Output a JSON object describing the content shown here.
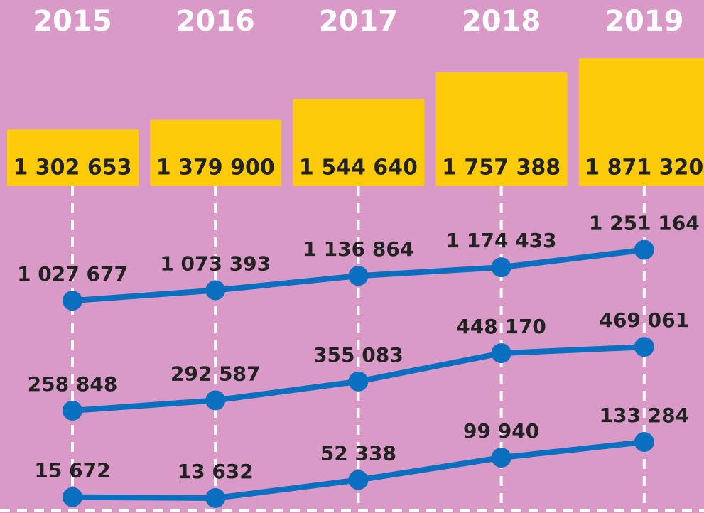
{
  "chart_data": [
    {
      "type": "bar",
      "categories": [
        "2015",
        "2016",
        "2017",
        "2018",
        "2019"
      ],
      "values": [
        1302653,
        1379900,
        1544640,
        1757388,
        1871320
      ],
      "value_labels": [
        "1 302 653",
        "1 379 900",
        "1 544 640",
        "1 757 388",
        "1 871 320"
      ],
      "color": "#fecb0a",
      "ylim": [
        850000,
        1900000
      ]
    },
    {
      "type": "line",
      "color": "#0a6fbf",
      "values": [
        1027677,
        1073393,
        1136864,
        1174433,
        1251164
      ],
      "value_labels": [
        "1 027 677",
        "1 073 393",
        "1 136 864",
        "1 174 433",
        "1 251 164"
      ],
      "ylim": [
        900000,
        1300000
      ]
    },
    {
      "type": "line",
      "color": "#0a6fbf",
      "values": [
        258848,
        292587,
        355083,
        448170,
        469061
      ],
      "value_labels": [
        "258 848",
        "292 587",
        "355 083",
        "448 170",
        "469 061"
      ],
      "ylim": [
        200000,
        500000
      ]
    },
    {
      "type": "line",
      "color": "#0a6fbf",
      "values": [
        15672,
        13632,
        52338,
        99940,
        133284
      ],
      "value_labels": [
        "15 672",
        "13 632",
        "52 338",
        "99 940",
        "133 284"
      ],
      "ylim": [
        0,
        150000
      ]
    }
  ]
}
